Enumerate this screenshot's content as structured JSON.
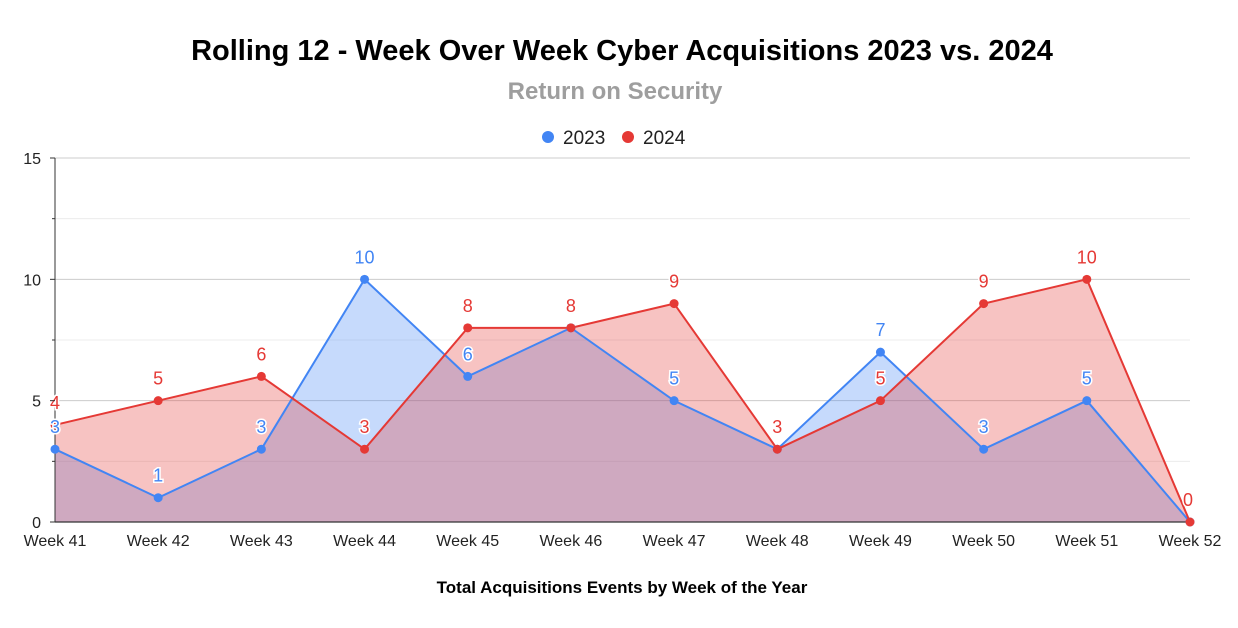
{
  "chart_data": {
    "type": "area",
    "title": "Rolling 12 - Week Over Week Cyber Acquisitions 2023 vs. 2024",
    "subtitle": "Return on Security",
    "xlabel": "Total Acquisitions Events by Week of the Year",
    "ylabel": "",
    "categories": [
      "Week 41",
      "Week 42",
      "Week 43",
      "Week 44",
      "Week 45",
      "Week 46",
      "Week 47",
      "Week 48",
      "Week 49",
      "Week 50",
      "Week 51",
      "Week 52"
    ],
    "ylim": [
      0,
      15
    ],
    "yticks": [
      "0",
      "5",
      "10",
      "15"
    ],
    "grid": true,
    "legend_position": "top-center",
    "series": [
      {
        "name": "2023",
        "color": "#4285f4",
        "fill": "#c5d9f9",
        "values": [
          3,
          1,
          3,
          10,
          6,
          8,
          5,
          3,
          7,
          3,
          5,
          0
        ],
        "labels": [
          "3",
          "1",
          "3",
          "10",
          "6",
          "",
          "5",
          "",
          "7",
          "3",
          "5",
          ""
        ]
      },
      {
        "name": "2024",
        "color": "#e53935",
        "fill": "#f4a8a1",
        "values": [
          4,
          5,
          6,
          3,
          8,
          8,
          9,
          3,
          5,
          9,
          10,
          0
        ],
        "labels": [
          "4",
          "5",
          "6",
          "3",
          "8",
          "8",
          "9",
          "3",
          "5",
          "9",
          "10",
          "0"
        ]
      }
    ]
  }
}
